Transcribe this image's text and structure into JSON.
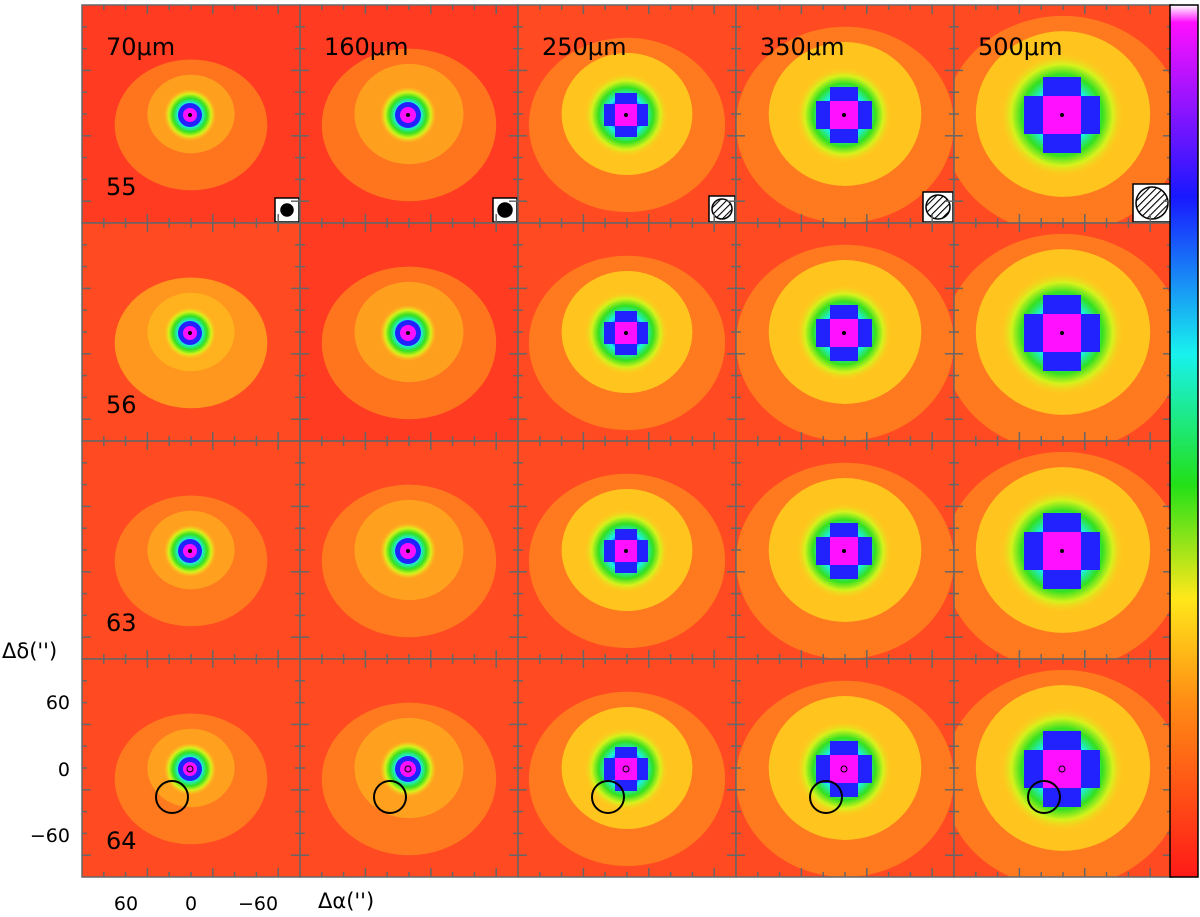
{
  "chart_data": {
    "type": "heatmap",
    "description_rows": [
      "55",
      "56",
      "63",
      "64"
    ],
    "columns": [
      "70µm",
      "160µm",
      "250µm",
      "350µm",
      "500µm"
    ],
    "column_labels_display": [
      "70μm",
      "160μm",
      "250μm",
      "350μm",
      "500μm"
    ],
    "xlabel": "Δα('')",
    "ylabel": "Δδ('')",
    "x_ticks": [
      60,
      0,
      -60
    ],
    "y_ticks": [
      60,
      0,
      -60
    ],
    "x_tick_labels": [
      "60",
      "0",
      "−60"
    ],
    "y_tick_labels": [
      "60",
      "0",
      "−60"
    ],
    "xlim": [
      120,
      -120
    ],
    "ylim": [
      -120,
      120
    ],
    "colormap": "rainbow (red low → magenta high)",
    "panels": [
      {
        "row": "55",
        "col": "70µm",
        "peak": [
          0,
          0
        ],
        "hatched_beam": false
      },
      {
        "row": "55",
        "col": "160µm",
        "peak": [
          0,
          0
        ],
        "hatched_beam": false
      },
      {
        "row": "55",
        "col": "250µm",
        "peak": [
          0,
          0
        ],
        "hatched_beam": true
      },
      {
        "row": "55",
        "col": "350µm",
        "peak": [
          0,
          0
        ],
        "hatched_beam": true
      },
      {
        "row": "55",
        "col": "500µm",
        "peak": [
          0,
          0
        ],
        "hatched_beam": true
      },
      {
        "row": "64",
        "col": "all",
        "circle_center": [
          10,
          -25
        ],
        "circle_radius": 18
      }
    ]
  },
  "colors": {
    "low": "#ff2a1f",
    "mid_low": "#ffc21e",
    "mid": "#33e021",
    "mid_high": "#19f0ec",
    "high": "#2222ff",
    "peak": "#ff11ff",
    "axis": "#666666"
  }
}
